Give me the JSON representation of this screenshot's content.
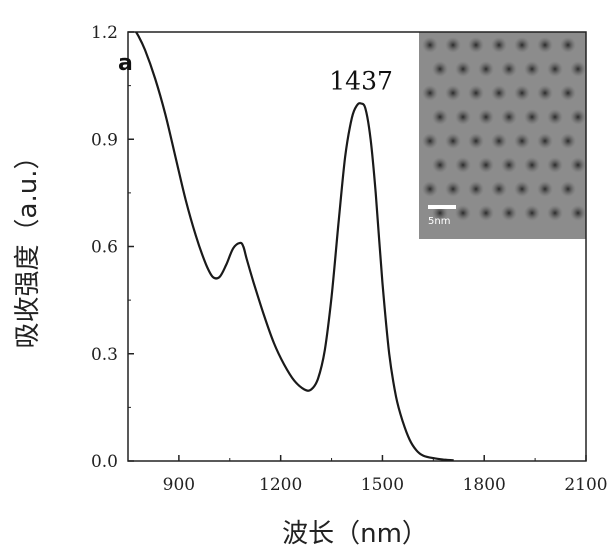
{
  "chart_data": {
    "type": "line",
    "panel_label": "a",
    "xlabel": "波长（nm）",
    "ylabel": "吸收强度（a.u.）",
    "xlim": [
      750,
      2100
    ],
    "ylim": [
      0.0,
      1.2
    ],
    "xticks": [
      900,
      1200,
      1500,
      1800,
      2100
    ],
    "yticks": [
      "0.0",
      "0.3",
      "0.6",
      "0.9",
      "1.2"
    ],
    "annotation": "1437",
    "annotation_point": [
      1437,
      1.0
    ],
    "inset_scale_label": "5nm",
    "grid": false,
    "series": [
      {
        "x": [
          760,
          780,
          800,
          830,
          860,
          890,
          920,
          950,
          980,
          1000,
          1020,
          1040,
          1060,
          1080,
          1090,
          1100,
          1120,
          1150,
          1180,
          1210,
          1240,
          1270,
          1290,
          1310,
          1330,
          1350,
          1370,
          1390,
          1410,
          1425,
          1437,
          1450,
          1465,
          1480,
          1500,
          1520,
          1540,
          1560,
          1580,
          1600,
          1620,
          1650,
          1680,
          1710
        ],
        "y": [
          1.22,
          1.19,
          1.15,
          1.07,
          0.97,
          0.85,
          0.73,
          0.63,
          0.55,
          0.515,
          0.515,
          0.55,
          0.595,
          0.61,
          0.6,
          0.565,
          0.5,
          0.41,
          0.33,
          0.27,
          0.225,
          0.2,
          0.2,
          0.23,
          0.31,
          0.46,
          0.66,
          0.85,
          0.96,
          0.995,
          1.0,
          0.985,
          0.9,
          0.75,
          0.5,
          0.3,
          0.18,
          0.11,
          0.06,
          0.03,
          0.015,
          0.008,
          0.004,
          0.002
        ]
      }
    ]
  }
}
